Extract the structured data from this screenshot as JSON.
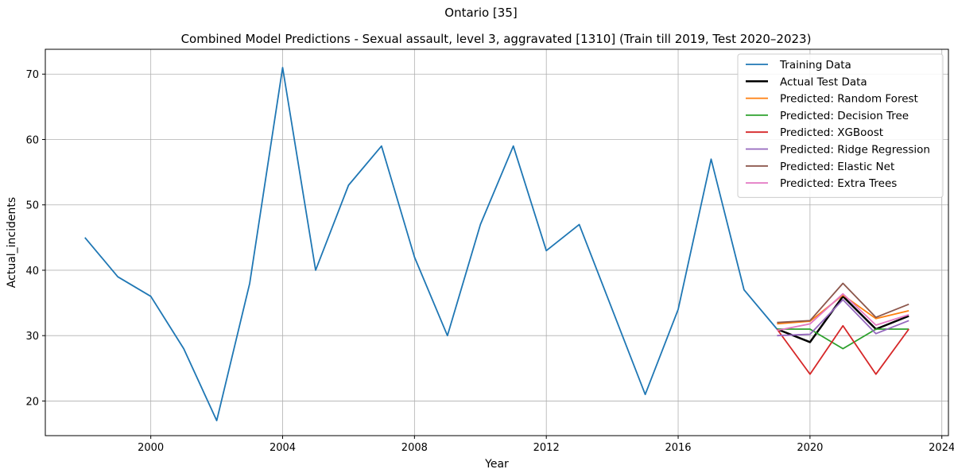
{
  "suptitle": "Ontario [35]",
  "chart_data": {
    "type": "line",
    "title": "Combined Model Predictions - Sexual assault, level 3, aggravated [1310] (Train till 2019, Test 2020–2023)",
    "xlabel": "Year",
    "ylabel": "Actual_incidents",
    "xlim": [
      1996.8,
      2024.2
    ],
    "ylim": [
      14.7,
      73.8
    ],
    "xticks": [
      2000,
      2004,
      2008,
      2012,
      2016,
      2020,
      2024
    ],
    "yticks": [
      20,
      30,
      40,
      50,
      60,
      70
    ],
    "grid": true,
    "legend_position": "top-right",
    "series": [
      {
        "name": "Training Data",
        "color": "#1f77b4",
        "x": [
          1998,
          1999,
          2000,
          2001,
          2002,
          2003,
          2004,
          2005,
          2006,
          2007,
          2008,
          2009,
          2010,
          2011,
          2012,
          2013,
          2014,
          2015,
          2016,
          2017,
          2018,
          2019
        ],
        "values": [
          45,
          39,
          36,
          28,
          17,
          38,
          71,
          40,
          53,
          59,
          42,
          30,
          47,
          59,
          43,
          47,
          34,
          21,
          34,
          57,
          37,
          31
        ]
      },
      {
        "name": "Actual Test Data",
        "color": "#000000",
        "x": [
          2019,
          2020,
          2021,
          2022,
          2023
        ],
        "values": [
          31,
          29,
          36,
          31,
          33
        ]
      },
      {
        "name": "Predicted: Random Forest",
        "color": "#ff7f0e",
        "x": [
          2019,
          2020,
          2021,
          2022,
          2023
        ],
        "values": [
          31.8,
          32.2,
          36.2,
          32.6,
          33.8
        ]
      },
      {
        "name": "Predicted: Decision Tree",
        "color": "#2ca02c",
        "x": [
          2019,
          2020,
          2021,
          2022,
          2023
        ],
        "values": [
          31,
          31,
          28,
          31,
          31
        ]
      },
      {
        "name": "Predicted: XGBoost",
        "color": "#d62728",
        "x": [
          2019,
          2020,
          2021,
          2022,
          2023
        ],
        "values": [
          31,
          24.1,
          31.5,
          24.1,
          31
        ]
      },
      {
        "name": "Predicted: Ridge Regression",
        "color": "#9467bd",
        "x": [
          2019,
          2020,
          2021,
          2022,
          2023
        ],
        "values": [
          30,
          30.2,
          35.5,
          30.3,
          32.3
        ]
      },
      {
        "name": "Predicted: Elastic Net",
        "color": "#8c564b",
        "x": [
          2019,
          2020,
          2021,
          2022,
          2023
        ],
        "values": [
          32,
          32.3,
          38,
          32.8,
          34.8
        ]
      },
      {
        "name": "Predicted: Extra Trees",
        "color": "#e377c2",
        "x": [
          2019,
          2020,
          2021,
          2022,
          2023
        ],
        "values": [
          30.8,
          31.8,
          36.4,
          31.6,
          33.2
        ]
      }
    ]
  }
}
